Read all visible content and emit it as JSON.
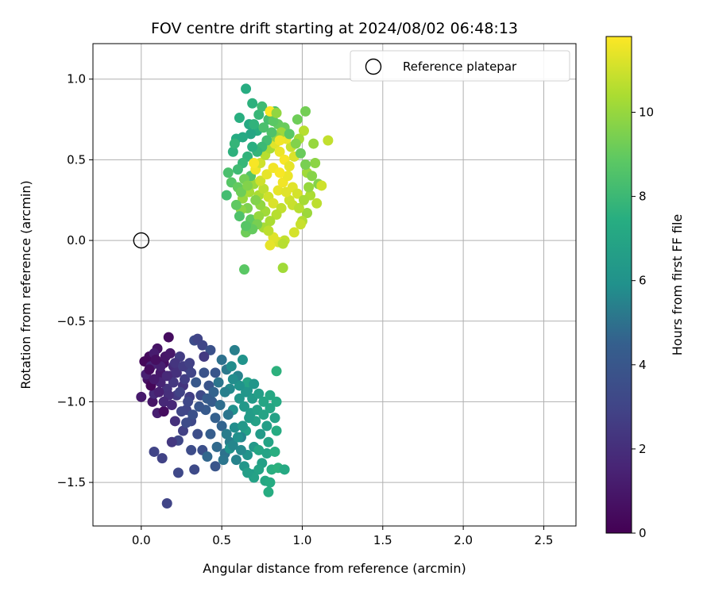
{
  "chart_data": {
    "type": "scatter",
    "title": "FOV centre drift starting at 2024/08/02 06:48:13",
    "xlabel": "Angular distance from reference (arcmin)",
    "ylabel": "Rotation from reference (arcmin)",
    "xlim": [
      -0.3,
      2.7
    ],
    "ylim": [
      -1.77,
      1.22
    ],
    "xticks": [
      0.0,
      0.5,
      1.0,
      1.5,
      2.0,
      2.5
    ],
    "xtick_labels": [
      "0.0",
      "0.5",
      "1.0",
      "1.5",
      "2.0",
      "2.5"
    ],
    "yticks": [
      -1.5,
      -1.0,
      -0.5,
      0.0,
      0.5,
      1.0
    ],
    "ytick_labels": [
      "−1.5",
      "−1.0",
      "−0.5",
      "0.0",
      "0.5",
      "1.0"
    ],
    "grid": true,
    "legend": {
      "position": "top-right",
      "entries": [
        "Reference platepar"
      ]
    },
    "reference_point": {
      "x": 0.0,
      "y": 0.0
    },
    "colorbar": {
      "label": "Hours from first FF file",
      "range": [
        0,
        11.8
      ],
      "ticks": [
        0,
        2,
        4,
        6,
        8,
        10
      ],
      "tick_labels": [
        "0",
        "2",
        "4",
        "6",
        "8",
        "10"
      ],
      "colormap": "viridis"
    },
    "points": [
      [
        0.17,
        -0.6,
        0.5
      ],
      [
        0.1,
        -0.67,
        0.8
      ],
      [
        0.05,
        -0.72,
        0.4
      ],
      [
        0.08,
        -0.7,
        1.2
      ],
      [
        0.14,
        -0.76,
        0.6
      ],
      [
        0.02,
        -0.75,
        0.3
      ],
      [
        0.06,
        -0.78,
        1.5
      ],
      [
        0.12,
        -0.82,
        1.0
      ],
      [
        0.04,
        -0.86,
        0.7
      ],
      [
        0.0,
        -0.97,
        1.1
      ],
      [
        0.07,
        -1.0,
        0.9
      ],
      [
        0.1,
        -1.07,
        1.3
      ],
      [
        0.14,
        -1.06,
        0.5
      ],
      [
        0.08,
        -0.95,
        1.8
      ],
      [
        0.16,
        -0.92,
        2.2
      ],
      [
        0.12,
        -0.88,
        1.6
      ],
      [
        0.18,
        -0.84,
        2.0
      ],
      [
        0.2,
        -0.78,
        1.9
      ],
      [
        0.06,
        -0.9,
        0.2
      ],
      [
        0.03,
        -0.83,
        1.4
      ],
      [
        0.22,
        -0.96,
        2.5
      ],
      [
        0.19,
        -1.02,
        1.7
      ],
      [
        0.24,
        -0.72,
        2.6
      ],
      [
        0.29,
        -0.79,
        2.9
      ],
      [
        0.26,
        -0.9,
        2.3
      ],
      [
        0.3,
        -0.97,
        2.7
      ],
      [
        0.28,
        -1.05,
        3.0
      ],
      [
        0.21,
        -1.12,
        2.1
      ],
      [
        0.26,
        -1.18,
        2.8
      ],
      [
        0.23,
        -1.24,
        3.1
      ],
      [
        0.19,
        -1.25,
        2.4
      ],
      [
        0.08,
        -1.31,
        3.0
      ],
      [
        0.13,
        -1.35,
        2.9
      ],
      [
        0.23,
        -1.44,
        3.2
      ],
      [
        0.16,
        -1.63,
        3.0
      ],
      [
        0.33,
        -1.42,
        3.3
      ],
      [
        0.31,
        -1.3,
        3.4
      ],
      [
        0.38,
        -1.3,
        3.6
      ],
      [
        0.35,
        -1.2,
        3.5
      ],
      [
        0.31,
        -1.12,
        3.2
      ],
      [
        0.33,
        -0.62,
        3.4
      ],
      [
        0.35,
        -0.61,
        3.0
      ],
      [
        0.38,
        -0.65,
        3.1
      ],
      [
        0.43,
        -0.68,
        3.7
      ],
      [
        0.39,
        -0.72,
        2.5
      ],
      [
        0.39,
        -0.82,
        3.8
      ],
      [
        0.46,
        -0.82,
        4.0
      ],
      [
        0.42,
        -0.9,
        3.9
      ],
      [
        0.34,
        -0.88,
        4.1
      ],
      [
        0.37,
        -0.96,
        3.3
      ],
      [
        0.44,
        -1.0,
        4.3
      ],
      [
        0.4,
        -1.05,
        4.2
      ],
      [
        0.46,
        -1.1,
        4.5
      ],
      [
        0.5,
        -1.15,
        4.6
      ],
      [
        0.43,
        -1.2,
        4.4
      ],
      [
        0.47,
        -1.28,
        4.8
      ],
      [
        0.41,
        -1.34,
        4.7
      ],
      [
        0.46,
        -1.4,
        3.9
      ],
      [
        0.52,
        -1.32,
        5.0
      ],
      [
        0.55,
        -1.25,
        5.3
      ],
      [
        0.5,
        -0.74,
        5.0
      ],
      [
        0.53,
        -0.8,
        5.2
      ],
      [
        0.58,
        -0.68,
        5.4
      ],
      [
        0.56,
        -0.78,
        5.8
      ],
      [
        0.6,
        -0.84,
        5.5
      ],
      [
        0.63,
        -0.74,
        6.0
      ],
      [
        0.55,
        -0.92,
        5.7
      ],
      [
        0.61,
        -0.98,
        6.2
      ],
      [
        0.57,
        -1.05,
        5.9
      ],
      [
        0.64,
        -1.03,
        6.3
      ],
      [
        0.66,
        -0.93,
        6.1
      ],
      [
        0.69,
        -0.98,
        6.4
      ],
      [
        0.73,
        -0.95,
        6.6
      ],
      [
        0.68,
        -1.07,
        6.5
      ],
      [
        0.71,
        -1.12,
        6.8
      ],
      [
        0.65,
        -1.18,
        6.7
      ],
      [
        0.62,
        -1.22,
        5.6
      ],
      [
        0.58,
        -1.16,
        5.8
      ],
      [
        0.54,
        -1.08,
        5.1
      ],
      [
        0.49,
        -1.02,
        4.9
      ],
      [
        0.66,
        -0.88,
        6.9
      ],
      [
        0.7,
        -0.89,
        6.2
      ],
      [
        0.76,
        -1.0,
        7.0
      ],
      [
        0.8,
        -0.96,
        7.1
      ],
      [
        0.84,
        -1.0,
        7.2
      ],
      [
        0.83,
        -1.1,
        6.8
      ],
      [
        0.78,
        -1.15,
        6.6
      ],
      [
        0.74,
        -1.2,
        6.4
      ],
      [
        0.79,
        -1.25,
        6.9
      ],
      [
        0.84,
        -1.18,
        7.3
      ],
      [
        0.7,
        -1.28,
        6.3
      ],
      [
        0.66,
        -1.33,
        6.0
      ],
      [
        0.62,
        -1.3,
        5.7
      ],
      [
        0.59,
        -1.36,
        5.5
      ],
      [
        0.64,
        -1.4,
        6.2
      ],
      [
        0.69,
        -1.45,
        6.5
      ],
      [
        0.75,
        -1.38,
        6.7
      ],
      [
        0.73,
        -1.3,
        7.0
      ],
      [
        0.78,
        -1.32,
        6.9
      ],
      [
        0.81,
        -1.42,
        7.5
      ],
      [
        0.73,
        -1.42,
        6.9
      ],
      [
        0.7,
        -1.47,
        6.8
      ],
      [
        0.66,
        -1.44,
        6.6
      ],
      [
        0.77,
        -1.49,
        7.1
      ],
      [
        0.8,
        -1.5,
        7.3
      ],
      [
        0.79,
        -1.56,
        7.4
      ],
      [
        0.85,
        -1.41,
        7.6
      ],
      [
        0.89,
        -1.42,
        7.2
      ],
      [
        0.83,
        -1.31,
        7.5
      ],
      [
        0.84,
        -0.81,
        7.6
      ],
      [
        0.55,
        -1.29,
        6.0
      ],
      [
        0.51,
        -1.36,
        5.1
      ],
      [
        0.53,
        -1.2,
        5.3
      ],
      [
        0.57,
        -1.27,
        5.6
      ],
      [
        0.6,
        -1.22,
        5.9
      ],
      [
        0.63,
        -1.15,
        6.3
      ],
      [
        0.67,
        -1.1,
        6.5
      ],
      [
        0.72,
        -1.05,
        6.7
      ],
      [
        0.76,
        -1.08,
        6.9
      ],
      [
        0.8,
        -1.04,
        7.0
      ],
      [
        0.65,
        -0.94,
        6.2
      ],
      [
        0.61,
        -0.9,
        6.0
      ],
      [
        0.57,
        -0.86,
        5.8
      ],
      [
        0.52,
        -0.94,
        5.4
      ],
      [
        0.48,
        -0.88,
        5.1
      ],
      [
        0.45,
        -0.94,
        4.6
      ],
      [
        0.41,
        -0.98,
        4.3
      ],
      [
        0.36,
        -1.03,
        4.0
      ],
      [
        0.32,
        -1.08,
        3.7
      ],
      [
        0.28,
        -1.13,
        3.4
      ],
      [
        0.25,
        -1.06,
        3.1
      ],
      [
        0.29,
        -1.0,
        3.2
      ],
      [
        0.24,
        -0.94,
        2.9
      ],
      [
        0.27,
        -0.86,
        2.7
      ],
      [
        0.31,
        -0.82,
        3.0
      ],
      [
        0.2,
        -0.88,
        2.4
      ],
      [
        0.17,
        -0.96,
        2.0
      ],
      [
        0.14,
        -1.0,
        1.7
      ],
      [
        0.11,
        -0.94,
        1.4
      ],
      [
        0.08,
        -0.86,
        1.1
      ],
      [
        0.12,
        -0.78,
        1.3
      ],
      [
        0.15,
        -0.72,
        0.9
      ],
      [
        0.09,
        -0.74,
        0.6
      ],
      [
        0.05,
        -0.8,
        0.5
      ],
      [
        0.18,
        -0.7,
        1.0
      ],
      [
        0.21,
        -0.76,
        2.3
      ],
      [
        0.16,
        -0.84,
        1.8
      ],
      [
        0.22,
        -0.82,
        2.1
      ],
      [
        0.26,
        -0.78,
        2.6
      ],
      [
        0.3,
        -0.76,
        2.8
      ],
      [
        0.65,
        0.94,
        7.4
      ],
      [
        0.69,
        0.85,
        7.6
      ],
      [
        0.61,
        0.76,
        7.5
      ],
      [
        0.67,
        0.72,
        7.2
      ],
      [
        0.73,
        0.78,
        7.9
      ],
      [
        0.75,
        0.83,
        8.1
      ],
      [
        0.79,
        0.75,
        8.3
      ],
      [
        0.83,
        0.8,
        8.5
      ],
      [
        0.85,
        0.72,
        9.0
      ],
      [
        0.89,
        0.7,
        9.1
      ],
      [
        0.97,
        0.75,
        9.2
      ],
      [
        1.02,
        0.8,
        9.3
      ],
      [
        1.01,
        0.68,
        10.6
      ],
      [
        0.98,
        0.63,
        10.3
      ],
      [
        1.07,
        0.6,
        10.0
      ],
      [
        1.16,
        0.62,
        10.8
      ],
      [
        1.08,
        0.48,
        9.8
      ],
      [
        1.03,
        0.42,
        10.2
      ],
      [
        1.1,
        0.35,
        9.6
      ],
      [
        1.12,
        0.34,
        11.0
      ],
      [
        1.05,
        0.28,
        10.4
      ],
      [
        1.09,
        0.23,
        10.7
      ],
      [
        1.03,
        0.17,
        10.1
      ],
      [
        1.0,
        0.12,
        10.5
      ],
      [
        0.99,
        0.1,
        10.9
      ],
      [
        0.95,
        0.05,
        11.1
      ],
      [
        0.89,
        0.0,
        10.8
      ],
      [
        0.85,
        -0.01,
        11.2
      ],
      [
        0.82,
        0.02,
        11.3
      ],
      [
        0.8,
        -0.03,
        11.4
      ],
      [
        0.88,
        -0.02,
        10.6
      ],
      [
        0.88,
        -0.17,
        10.2
      ],
      [
        0.64,
        -0.18,
        8.8
      ],
      [
        0.65,
        0.05,
        9.2
      ],
      [
        0.68,
        0.13,
        8.9
      ],
      [
        0.66,
        0.2,
        9.5
      ],
      [
        0.62,
        0.19,
        9.8
      ],
      [
        0.63,
        0.26,
        10.0
      ],
      [
        0.67,
        0.3,
        10.3
      ],
      [
        0.7,
        0.35,
        10.1
      ],
      [
        0.73,
        0.28,
        10.4
      ],
      [
        0.76,
        0.32,
        10.7
      ],
      [
        0.79,
        0.27,
        11.0
      ],
      [
        0.82,
        0.23,
        11.2
      ],
      [
        0.85,
        0.31,
        11.4
      ],
      [
        0.88,
        0.36,
        11.6
      ],
      [
        0.91,
        0.4,
        11.5
      ],
      [
        0.94,
        0.33,
        11.3
      ],
      [
        0.97,
        0.29,
        11.1
      ],
      [
        0.92,
        0.25,
        11.0
      ],
      [
        0.87,
        0.2,
        10.8
      ],
      [
        0.84,
        0.16,
        10.6
      ],
      [
        0.8,
        0.12,
        10.4
      ],
      [
        0.77,
        0.18,
        10.2
      ],
      [
        0.74,
        0.22,
        9.9
      ],
      [
        0.71,
        0.25,
        9.6
      ],
      [
        0.68,
        0.4,
        8.6
      ],
      [
        0.71,
        0.44,
        11.6
      ],
      [
        0.74,
        0.48,
        11.0
      ],
      [
        0.77,
        0.53,
        10.6
      ],
      [
        0.8,
        0.57,
        10.3
      ],
      [
        0.83,
        0.6,
        11.3
      ],
      [
        0.86,
        0.55,
        11.5
      ],
      [
        0.89,
        0.5,
        11.7
      ],
      [
        0.92,
        0.46,
        11.4
      ],
      [
        0.95,
        0.52,
        11.2
      ],
      [
        0.93,
        0.58,
        10.9
      ],
      [
        0.9,
        0.63,
        11.5
      ],
      [
        0.87,
        0.67,
        10.1
      ],
      [
        0.84,
        0.64,
        9.7
      ],
      [
        0.81,
        0.67,
        8.5
      ],
      [
        0.78,
        0.62,
        8.2
      ],
      [
        0.75,
        0.58,
        8.0
      ],
      [
        0.72,
        0.55,
        7.8
      ],
      [
        0.69,
        0.58,
        7.5
      ],
      [
        0.66,
        0.52,
        7.7
      ],
      [
        0.63,
        0.48,
        7.9
      ],
      [
        0.6,
        0.44,
        8.1
      ],
      [
        0.57,
        0.55,
        7.6
      ],
      [
        0.59,
        0.63,
        7.3
      ],
      [
        0.54,
        0.42,
        8.4
      ],
      [
        0.56,
        0.36,
        8.7
      ],
      [
        0.6,
        0.33,
        9.0
      ],
      [
        0.64,
        0.38,
        9.3
      ],
      [
        0.7,
        0.48,
        11.7
      ],
      [
        0.74,
        0.37,
        11.0
      ],
      [
        0.78,
        0.41,
        11.4
      ],
      [
        0.82,
        0.45,
        11.6
      ],
      [
        0.86,
        0.42,
        11.7
      ],
      [
        0.9,
        0.3,
        11.3
      ],
      [
        0.94,
        0.22,
        10.9
      ],
      [
        0.98,
        0.2,
        10.6
      ],
      [
        1.01,
        0.25,
        10.3
      ],
      [
        1.04,
        0.33,
        10.0
      ],
      [
        1.06,
        0.4,
        9.7
      ],
      [
        1.02,
        0.47,
        9.4
      ],
      [
        0.99,
        0.54,
        9.1
      ],
      [
        0.96,
        0.6,
        9.6
      ],
      [
        0.92,
        0.66,
        8.8
      ],
      [
        0.86,
        0.62,
        11.6
      ],
      [
        0.72,
        0.68,
        7.4
      ],
      [
        0.68,
        0.66,
        7.0
      ],
      [
        0.7,
        0.72,
        7.7
      ],
      [
        0.76,
        0.7,
        8.4
      ],
      [
        0.82,
        0.74,
        8.8
      ],
      [
        0.8,
        0.8,
        11.8
      ],
      [
        0.84,
        0.79,
        9.9
      ],
      [
        0.63,
        0.64,
        7.2
      ],
      [
        0.58,
        0.6,
        7.8
      ],
      [
        0.53,
        0.28,
        8.2
      ],
      [
        0.73,
        0.15,
        10.0
      ],
      [
        0.76,
        0.08,
        10.3
      ],
      [
        0.79,
        0.06,
        10.7
      ],
      [
        0.72,
        0.1,
        9.4
      ],
      [
        0.69,
        0.07,
        9.0
      ],
      [
        0.65,
        0.09,
        8.7
      ],
      [
        0.61,
        0.15,
        8.5
      ],
      [
        0.59,
        0.22,
        8.9
      ],
      [
        0.62,
        0.3,
        9.2
      ],
      [
        0.66,
        0.34,
        9.6
      ]
    ]
  }
}
